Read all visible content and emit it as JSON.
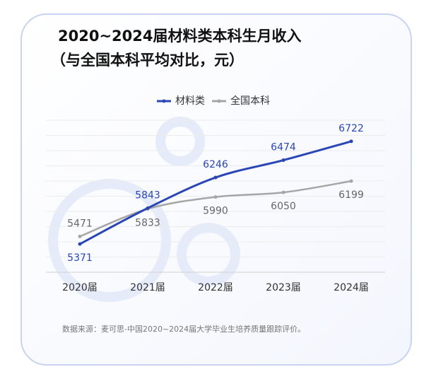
{
  "chart_data": {
    "type": "line",
    "title": "2020~2024届材料类本科生月收入",
    "subtitle": "（与全国本科平均对比，元）",
    "categories": [
      "2020届",
      "2021届",
      "2022届",
      "2023届",
      "2024届"
    ],
    "series": [
      {
        "name": "材料类",
        "color": "#2b46b5",
        "values": [
          5371,
          5843,
          6246,
          6474,
          6722
        ]
      },
      {
        "name": "全国本科",
        "color": "#a6a6a6",
        "values": [
          5471,
          5833,
          5990,
          6050,
          6199
        ]
      }
    ],
    "ylim": [
      5000,
      7000
    ],
    "grid": true,
    "legend": "top",
    "source": "数据来源：麦可思-中国2020~2024届大学毕业生培养质量跟踪评价。"
  }
}
